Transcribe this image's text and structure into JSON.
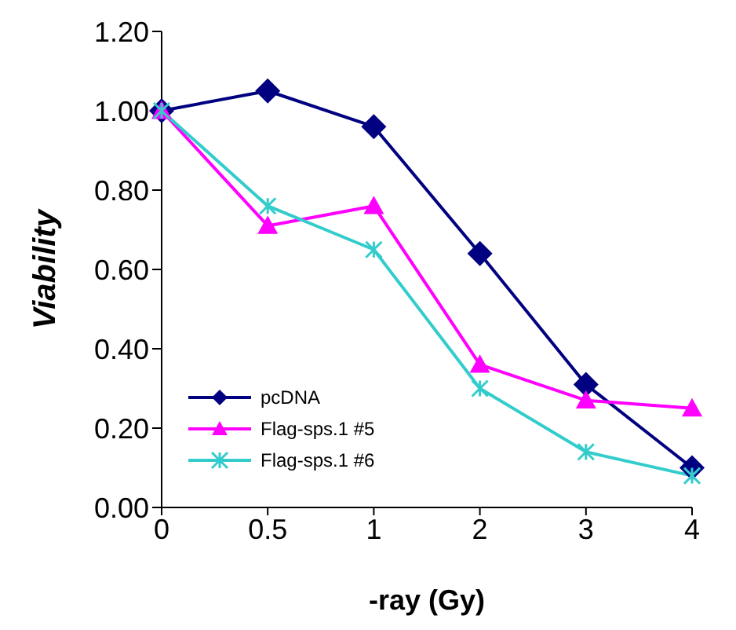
{
  "chart_data": {
    "type": "line",
    "xlabel": "-ray (Gy)",
    "ylabel": "Viability",
    "categories": [
      "0",
      "0.5",
      "1",
      "2",
      "3",
      "4"
    ],
    "series": [
      {
        "name": "pcDNA",
        "color": "#000080",
        "marker": "diamond",
        "values": [
          1.0,
          1.05,
          0.96,
          0.64,
          0.31,
          0.1
        ]
      },
      {
        "name": "Flag-sps.1 #5",
        "color": "#ff00ff",
        "marker": "triangle",
        "values": [
          1.0,
          0.71,
          0.76,
          0.36,
          0.27,
          0.25
        ]
      },
      {
        "name": "Flag-sps.1 #6",
        "color": "#33cccc",
        "marker": "cross",
        "values": [
          1.0,
          0.76,
          0.65,
          0.3,
          0.14,
          0.08
        ]
      }
    ],
    "ylim": [
      0,
      1.2
    ],
    "yticks": [
      {
        "value": 0,
        "label": "0.00"
      },
      {
        "value": 0.2,
        "label": "0.20"
      },
      {
        "value": 0.4,
        "label": "0.40"
      },
      {
        "value": 0.6,
        "label": "0.60"
      },
      {
        "value": 0.8,
        "label": "0.80"
      },
      {
        "value": 1,
        "label": "1.00"
      },
      {
        "value": 1.2,
        "label": "1.20"
      }
    ],
    "grid": false,
    "legend": "bottom left",
    "line_style": "solid"
  }
}
